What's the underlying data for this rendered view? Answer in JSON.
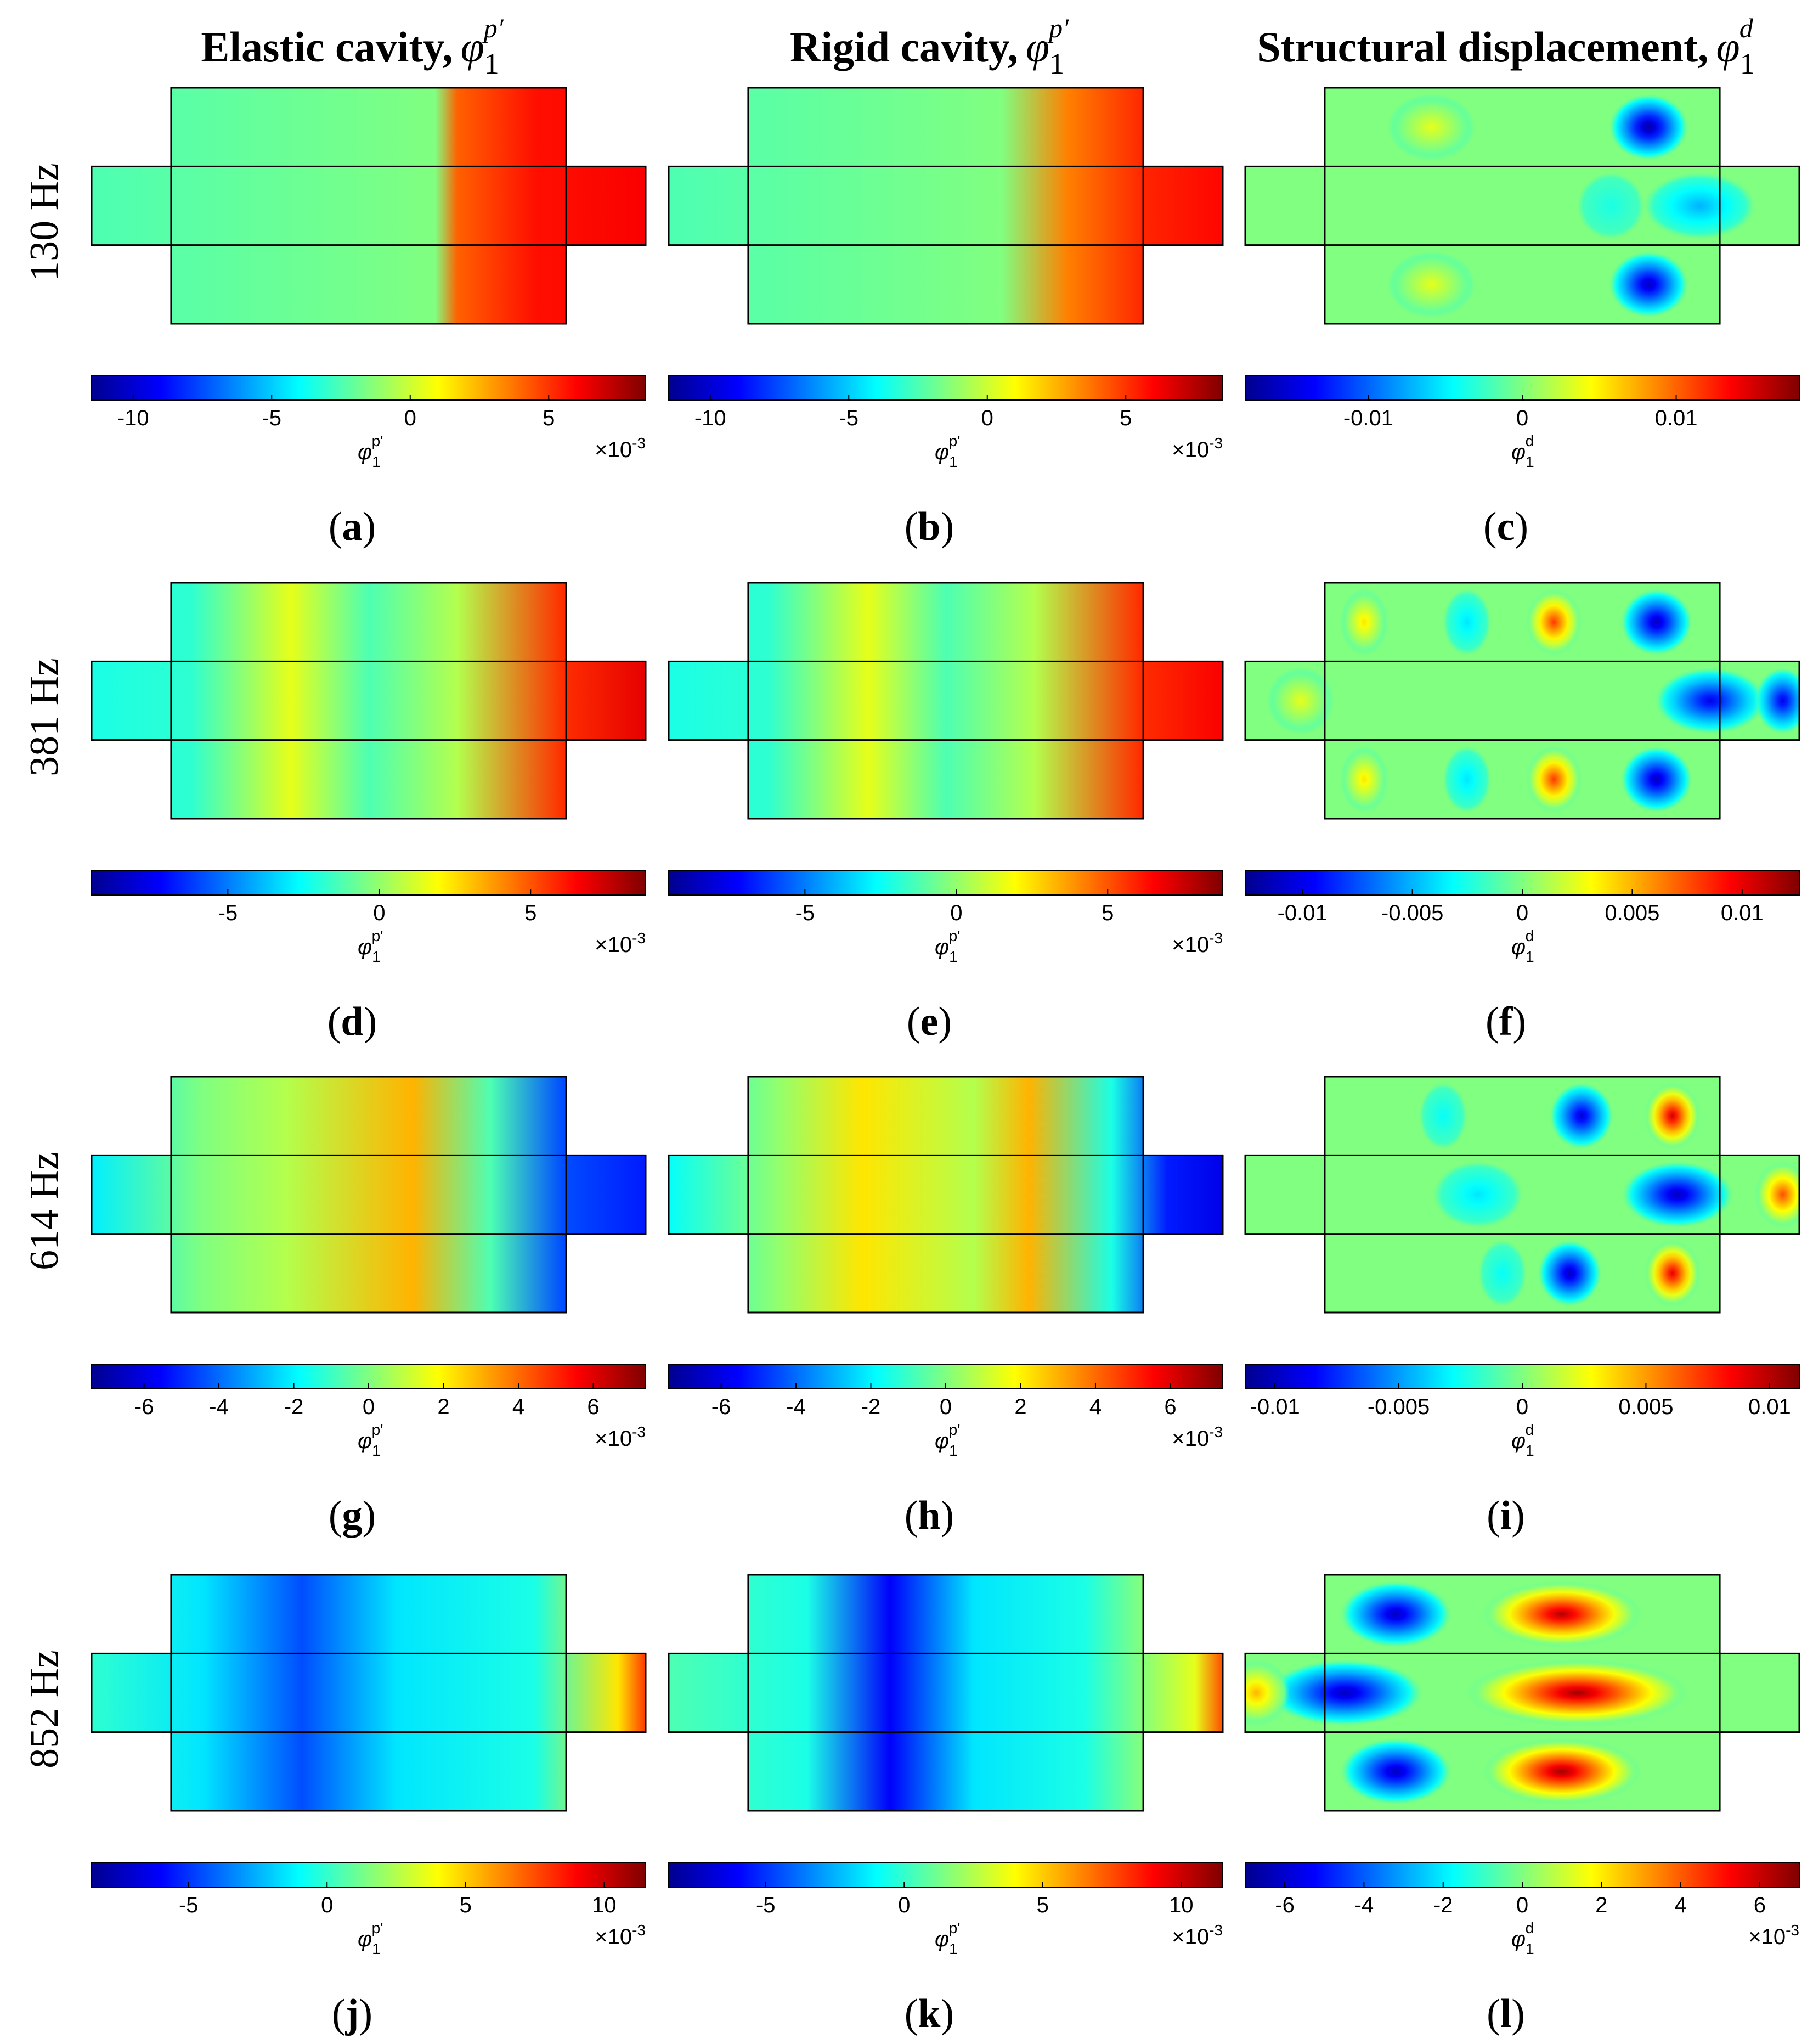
{
  "column_headers": [
    {
      "text": "Elastic cavity,",
      "sym": "φ",
      "sub": "1",
      "sup": "p′"
    },
    {
      "text": "Rigid cavity,",
      "sym": "φ",
      "sub": "1",
      "sup": "p′"
    },
    {
      "text": "Structural displacement,",
      "sym": "φ",
      "sub": "1",
      "sup": "d"
    }
  ],
  "row_labels": [
    "130 Hz",
    "381 Hz",
    "614 Hz",
    "852 Hz"
  ],
  "panel_letters": [
    "a",
    "b",
    "c",
    "d",
    "e",
    "f",
    "g",
    "h",
    "i",
    "j",
    "k",
    "l"
  ],
  "colormap": "jet",
  "colormap_stops": [
    "#00008f",
    "#0000ff",
    "#0080ff",
    "#00ffff",
    "#80ff80",
    "#ffff00",
    "#ff8000",
    "#ff0000",
    "#800000"
  ],
  "plot_background": "#80ff80",
  "colorbars": [
    {
      "ticks": [
        "-10",
        "-5",
        "0",
        "5"
      ],
      "tick_values": [
        -10,
        -5,
        0,
        5
      ],
      "range": [
        -11.5,
        8.5
      ],
      "label_sym": "φ",
      "label_sub": "1",
      "label_sup": "p'",
      "exponent": "×10",
      "exponent_pow": "-3"
    },
    {
      "ticks": [
        "-10",
        "-5",
        "0",
        "5"
      ],
      "tick_values": [
        -10,
        -5,
        0,
        5
      ],
      "range": [
        -11.5,
        8.5
      ],
      "label_sym": "φ",
      "label_sub": "1",
      "label_sup": "p'",
      "exponent": "×10",
      "exponent_pow": "-3"
    },
    {
      "ticks": [
        "-0.01",
        "0",
        "0.01"
      ],
      "tick_values": [
        -0.01,
        0,
        0.01
      ],
      "range": [
        -0.018,
        0.018
      ],
      "label_sym": "φ",
      "label_sub": "1",
      "label_sup": "d",
      "exponent": "",
      "exponent_pow": ""
    },
    {
      "ticks": [
        "-5",
        "0",
        "5"
      ],
      "tick_values": [
        -5,
        0,
        5
      ],
      "range": [
        -9.5,
        8.8
      ],
      "label_sym": "φ",
      "label_sub": "1",
      "label_sup": "p'",
      "exponent": "×10",
      "exponent_pow": "-3"
    },
    {
      "ticks": [
        "-5",
        "0",
        "5"
      ],
      "tick_values": [
        -5,
        0,
        5
      ],
      "range": [
        -9.5,
        8.8
      ],
      "label_sym": "φ",
      "label_sub": "1",
      "label_sup": "p'",
      "exponent": "×10",
      "exponent_pow": "-3"
    },
    {
      "ticks": [
        "-0.01",
        "-0.005",
        "0",
        "0.005",
        "0.01"
      ],
      "tick_values": [
        -0.01,
        -0.005,
        0,
        0.005,
        0.01
      ],
      "range": [
        -0.0126,
        0.0126
      ],
      "label_sym": "φ",
      "label_sub": "1",
      "label_sup": "d",
      "exponent": "",
      "exponent_pow": ""
    },
    {
      "ticks": [
        "-6",
        "-4",
        "-2",
        "0",
        "2",
        "4",
        "6"
      ],
      "tick_values": [
        -6,
        -4,
        -2,
        0,
        2,
        4,
        6
      ],
      "range": [
        -7.4,
        7.4
      ],
      "label_sym": "φ",
      "label_sub": "1",
      "label_sup": "p'",
      "exponent": "×10",
      "exponent_pow": "-3"
    },
    {
      "ticks": [
        "-6",
        "-4",
        "-2",
        "0",
        "2",
        "4",
        "6"
      ],
      "tick_values": [
        -6,
        -4,
        -2,
        0,
        2,
        4,
        6
      ],
      "range": [
        -7.4,
        7.4
      ],
      "label_sym": "φ",
      "label_sub": "1",
      "label_sup": "p'",
      "exponent": "×10",
      "exponent_pow": "-3"
    },
    {
      "ticks": [
        "-0.01",
        "-0.005",
        "0",
        "0.005",
        "0.01"
      ],
      "tick_values": [
        -0.01,
        -0.005,
        0,
        0.005,
        0.01
      ],
      "range": [
        -0.0112,
        0.0112
      ],
      "label_sym": "φ",
      "label_sub": "1",
      "label_sup": "d",
      "exponent": "",
      "exponent_pow": ""
    },
    {
      "ticks": [
        "-5",
        "0",
        "5",
        "10"
      ],
      "tick_values": [
        -5,
        0,
        5,
        10
      ],
      "range": [
        -8.5,
        11.5
      ],
      "label_sym": "φ",
      "label_sub": "1",
      "label_sup": "p'",
      "exponent": "×10",
      "exponent_pow": "-3"
    },
    {
      "ticks": [
        "-5",
        "0",
        "5",
        "10"
      ],
      "tick_values": [
        -5,
        0,
        5,
        10
      ],
      "range": [
        -8.5,
        11.5
      ],
      "label_sym": "φ",
      "label_sub": "1",
      "label_sup": "p'",
      "exponent": "×10",
      "exponent_pow": "-3"
    },
    {
      "ticks": [
        "-6",
        "-4",
        "-2",
        "0",
        "2",
        "4",
        "6"
      ],
      "tick_values": [
        -6,
        -4,
        -2,
        0,
        2,
        4,
        6
      ],
      "range": [
        -7,
        7
      ],
      "label_sym": "φ",
      "label_sub": "1",
      "label_sup": "d",
      "exponent": "×10",
      "exponent_pow": "-3"
    }
  ],
  "fields": [
    {
      "type": "pressure",
      "bands": [
        [
          0,
          0.45
        ],
        [
          0.62,
          0.5
        ],
        [
          0.66,
          0.78
        ],
        [
          0.8,
          0.86
        ],
        [
          1,
          0.88
        ]
      ]
    },
    {
      "type": "pressure",
      "bands": [
        [
          0,
          0.45
        ],
        [
          0.6,
          0.5
        ],
        [
          0.72,
          0.75
        ],
        [
          0.86,
          0.84
        ],
        [
          1,
          0.87
        ]
      ]
    },
    {
      "type": "structure",
      "blobs": [
        {
          "seg": "top",
          "u": 0.27,
          "v": 0.5,
          "val": 0.6,
          "rx": 0.11
        },
        {
          "seg": "top",
          "u": 0.82,
          "v": 0.5,
          "val": 0.02,
          "rx": 0.1
        },
        {
          "seg": "mid",
          "u": 0.82,
          "v": 0.5,
          "val": 0.3,
          "rx": 0.1
        },
        {
          "seg": "mid",
          "u": 0.66,
          "v": 0.5,
          "val": 0.4,
          "rx": 0.06
        },
        {
          "seg": "bot",
          "u": 0.27,
          "v": 0.5,
          "val": 0.6,
          "rx": 0.11
        },
        {
          "seg": "bot",
          "u": 0.82,
          "v": 0.5,
          "val": 0.05,
          "rx": 0.1
        }
      ]
    },
    {
      "type": "pressure",
      "bands": [
        [
          0,
          0.4
        ],
        [
          0.18,
          0.42
        ],
        [
          0.36,
          0.6
        ],
        [
          0.5,
          0.45
        ],
        [
          0.66,
          0.55
        ],
        [
          0.85,
          0.83
        ],
        [
          1,
          0.9
        ]
      ]
    },
    {
      "type": "pressure",
      "bands": [
        [
          0,
          0.4
        ],
        [
          0.18,
          0.42
        ],
        [
          0.36,
          0.6
        ],
        [
          0.5,
          0.45
        ],
        [
          0.66,
          0.55
        ],
        [
          0.85,
          0.83
        ],
        [
          1,
          0.88
        ]
      ]
    },
    {
      "type": "structure",
      "blobs": [
        {
          "seg": "top",
          "u": 0.1,
          "v": 0.5,
          "val": 0.65,
          "rx": 0.06
        },
        {
          "seg": "top",
          "u": 0.36,
          "v": 0.5,
          "val": 0.35,
          "rx": 0.06
        },
        {
          "seg": "top",
          "u": 0.58,
          "v": 0.5,
          "val": 0.82,
          "rx": 0.07
        },
        {
          "seg": "top",
          "u": 0.84,
          "v": 0.5,
          "val": 0.05,
          "rx": 0.09
        },
        {
          "seg": "mid",
          "u": 0.1,
          "v": 0.5,
          "val": 0.6,
          "rx": 0.06
        },
        {
          "seg": "mid",
          "u": 0.84,
          "v": 0.5,
          "val": 0.1,
          "rx": 0.1
        },
        {
          "seg": "mid",
          "u": 0.97,
          "v": 0.5,
          "val": 0.1,
          "rx": 0.05
        },
        {
          "seg": "bot",
          "u": 0.1,
          "v": 0.5,
          "val": 0.65,
          "rx": 0.06
        },
        {
          "seg": "bot",
          "u": 0.36,
          "v": 0.5,
          "val": 0.35,
          "rx": 0.06
        },
        {
          "seg": "bot",
          "u": 0.58,
          "v": 0.5,
          "val": 0.82,
          "rx": 0.07
        },
        {
          "seg": "bot",
          "u": 0.84,
          "v": 0.5,
          "val": 0.05,
          "rx": 0.09
        }
      ]
    },
    {
      "type": "pressure",
      "bands": [
        [
          0,
          0.36
        ],
        [
          0.2,
          0.5
        ],
        [
          0.35,
          0.55
        ],
        [
          0.58,
          0.7
        ],
        [
          0.72,
          0.45
        ],
        [
          0.85,
          0.2
        ],
        [
          1,
          0.15
        ]
      ]
    },
    {
      "type": "pressure",
      "bands": [
        [
          0,
          0.38
        ],
        [
          0.2,
          0.52
        ],
        [
          0.35,
          0.65
        ],
        [
          0.55,
          0.55
        ],
        [
          0.65,
          0.7
        ],
        [
          0.8,
          0.4
        ],
        [
          0.9,
          0.15
        ],
        [
          1,
          0.1
        ]
      ]
    },
    {
      "type": "structure",
      "blobs": [
        {
          "seg": "top",
          "u": 0.3,
          "v": 0.5,
          "val": 0.38,
          "rx": 0.06
        },
        {
          "seg": "top",
          "u": 0.65,
          "v": 0.5,
          "val": 0.08,
          "rx": 0.08
        },
        {
          "seg": "top",
          "u": 0.88,
          "v": 0.5,
          "val": 0.92,
          "rx": 0.07
        },
        {
          "seg": "mid",
          "u": 0.42,
          "v": 0.5,
          "val": 0.35,
          "rx": 0.08
        },
        {
          "seg": "mid",
          "u": 0.78,
          "v": 0.5,
          "val": 0.05,
          "rx": 0.1
        },
        {
          "seg": "mid",
          "u": 0.97,
          "v": 0.5,
          "val": 0.8,
          "rx": 0.05
        },
        {
          "seg": "bot",
          "u": 0.45,
          "v": 0.5,
          "val": 0.38,
          "rx": 0.06
        },
        {
          "seg": "bot",
          "u": 0.62,
          "v": 0.5,
          "val": 0.05,
          "rx": 0.08
        },
        {
          "seg": "bot",
          "u": 0.88,
          "v": 0.5,
          "val": 0.9,
          "rx": 0.07
        }
      ]
    },
    {
      "type": "pressure",
      "bands": [
        [
          0,
          0.42
        ],
        [
          0.2,
          0.35
        ],
        [
          0.38,
          0.2
        ],
        [
          0.55,
          0.35
        ],
        [
          0.8,
          0.4
        ],
        [
          0.95,
          0.65
        ],
        [
          1,
          0.82
        ]
      ]
    },
    {
      "type": "pressure",
      "bands": [
        [
          0,
          0.45
        ],
        [
          0.25,
          0.4
        ],
        [
          0.4,
          0.12
        ],
        [
          0.55,
          0.35
        ],
        [
          0.75,
          0.4
        ],
        [
          0.95,
          0.6
        ],
        [
          1,
          0.8
        ]
      ]
    },
    {
      "type": "structure",
      "blobs": [
        {
          "seg": "top",
          "u": 0.18,
          "v": 0.5,
          "val": 0.05,
          "rx": 0.14
        },
        {
          "seg": "top",
          "u": 0.6,
          "v": 0.5,
          "val": 0.95,
          "rx": 0.2
        },
        {
          "seg": "mid",
          "u": 0.18,
          "v": 0.5,
          "val": 0.05,
          "rx": 0.14
        },
        {
          "seg": "mid",
          "u": 0.6,
          "v": 0.5,
          "val": 0.97,
          "rx": 0.2
        },
        {
          "seg": "mid",
          "u": 0.02,
          "v": 0.5,
          "val": 0.7,
          "rx": 0.06
        },
        {
          "seg": "bot",
          "u": 0.18,
          "v": 0.5,
          "val": 0.05,
          "rx": 0.14
        },
        {
          "seg": "bot",
          "u": 0.6,
          "v": 0.5,
          "val": 0.97,
          "rx": 0.2
        }
      ]
    }
  ]
}
